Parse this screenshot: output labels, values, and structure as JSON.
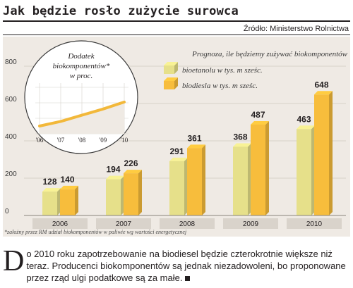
{
  "header": {
    "title": "Jak będzie rosło zużycie surowca",
    "source": "Źródło: Ministerstwo Rolnictwa"
  },
  "colors": {
    "bioethanol": "#e6e08a",
    "biodiesel": "#f7bd3c",
    "inset_line": "#f2b83a",
    "background": "#efeae4"
  },
  "chart_data": [
    {
      "type": "bar",
      "title": "Prognoza, ile będziemy zużywać biokomponentów",
      "categories": [
        "2006",
        "2007",
        "2008",
        "2009",
        "2010"
      ],
      "series": [
        {
          "name": "bioetanolu w tys. m sześc.",
          "values": [
            128,
            194,
            291,
            368,
            463
          ]
        },
        {
          "name": "biodiesla w tys. m sześc.",
          "values": [
            140,
            226,
            361,
            487,
            648
          ]
        }
      ],
      "yticks": [
        "0",
        "200",
        "400",
        "600",
        "800"
      ],
      "ylim": [
        0,
        800
      ],
      "legend": "top-right",
      "grid": true
    },
    {
      "type": "line",
      "title": "Dodatek biokomponentów* w proc.",
      "categories": [
        "'06",
        "'07",
        "'08",
        "'09",
        "'10"
      ],
      "values": [
        1.0,
        1.6,
        2.4,
        3.2,
        4.1
      ],
      "ylim": [
        0,
        6
      ]
    }
  ],
  "footnote": "*założny przez RM udział biokomponentów w paliwie wg wartości energetycznej",
  "article": {
    "dropcap": "D",
    "text": "o 2010 roku zapotrzebowanie na biodiesel będzie czterokrotnie większe niż teraz. Producenci biokomponentów są jednak niezadowoleni, bo proponowane przez rząd ulgi podatkowe są za małe."
  }
}
